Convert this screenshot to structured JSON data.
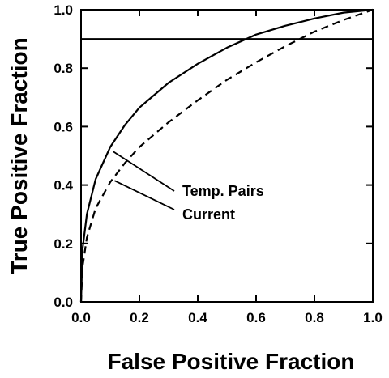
{
  "chart_data": {
    "type": "line",
    "xlabel": "False Positive Fraction",
    "ylabel": "True Positive Fraction",
    "xlim": [
      0,
      1
    ],
    "ylim": [
      0,
      1
    ],
    "xticks": [
      "0.0",
      "0.2",
      "0.4",
      "0.6",
      "0.8",
      "1.0"
    ],
    "yticks": [
      "0.0",
      "0.2",
      "0.4",
      "0.6",
      "0.8",
      "1.0"
    ],
    "grid": false,
    "series": [
      {
        "name": "Temp. Pairs",
        "line_style": "solid",
        "x": [
          0,
          0.005,
          0.02,
          0.05,
          0.1,
          0.15,
          0.2,
          0.3,
          0.4,
          0.5,
          0.6,
          0.7,
          0.8,
          0.9,
          1.0
        ],
        "y": [
          0,
          0.18,
          0.3,
          0.42,
          0.53,
          0.605,
          0.665,
          0.75,
          0.815,
          0.87,
          0.915,
          0.945,
          0.97,
          0.99,
          1.0
        ]
      },
      {
        "name": "Current",
        "line_style": "dashed",
        "x": [
          0,
          0.005,
          0.02,
          0.05,
          0.1,
          0.15,
          0.2,
          0.3,
          0.4,
          0.5,
          0.6,
          0.7,
          0.8,
          0.9,
          1.0
        ],
        "y": [
          0,
          0.12,
          0.22,
          0.32,
          0.41,
          0.475,
          0.53,
          0.615,
          0.69,
          0.76,
          0.82,
          0.875,
          0.925,
          0.965,
          1.0
        ]
      }
    ],
    "reference_lines": [
      {
        "orientation": "horizontal",
        "y": 0.9
      }
    ],
    "annotations": [
      {
        "text": "Temp. Pairs",
        "points_to": {
          "x": 0.11,
          "y": 0.515
        }
      },
      {
        "text": "Current",
        "points_to": {
          "x": 0.115,
          "y": 0.415
        }
      }
    ]
  }
}
